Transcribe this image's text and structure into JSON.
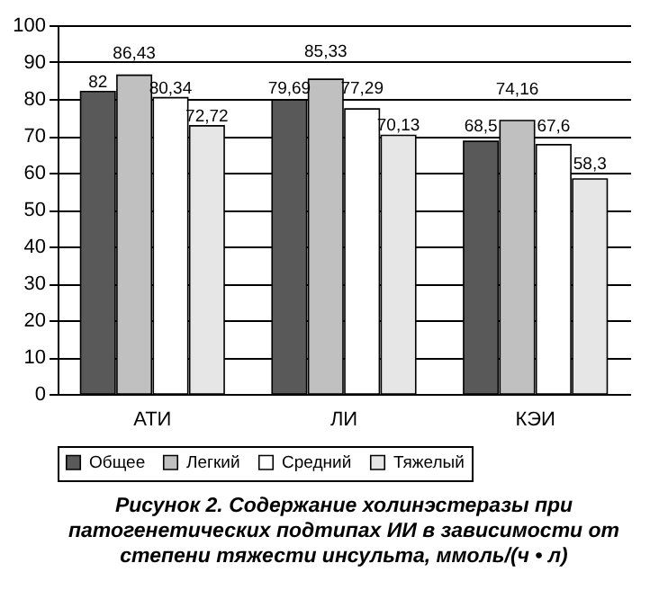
{
  "chart_data": {
    "type": "bar",
    "title": "Рисунок 2. Содержание холинэстеразы при патогенетических подтипах ИИ в зависимости от степени тяжести инсульта, ммоль/(ч • л)",
    "categories": [
      "АТИ",
      "ЛИ",
      "КЭИ"
    ],
    "series": [
      {
        "name": "Общее",
        "color": "#595959",
        "values": [
          82,
          79.69,
          68.5
        ],
        "value_labels": [
          "82",
          "79,69",
          "68,5"
        ]
      },
      {
        "name": "Легкий",
        "color": "#c0c0c0",
        "values": [
          86.43,
          85.33,
          74.16
        ],
        "value_labels": [
          "86,43",
          "85,33",
          "74,16"
        ]
      },
      {
        "name": "Средний",
        "color": "#ffffff",
        "values": [
          80.34,
          77.29,
          67.6
        ],
        "value_labels": [
          "80,34",
          "77,29",
          "67,6"
        ]
      },
      {
        "name": "Тяжелый",
        "color": "#e6e6e6",
        "values": [
          72.72,
          70.13,
          58.3
        ],
        "value_labels": [
          "72,72",
          "70,13",
          "58,3"
        ]
      }
    ],
    "ylim": [
      0,
      100
    ],
    "yticks": [
      0,
      10,
      20,
      30,
      40,
      50,
      60,
      70,
      80,
      90,
      100
    ],
    "grid": "y",
    "legend": "bottom"
  }
}
